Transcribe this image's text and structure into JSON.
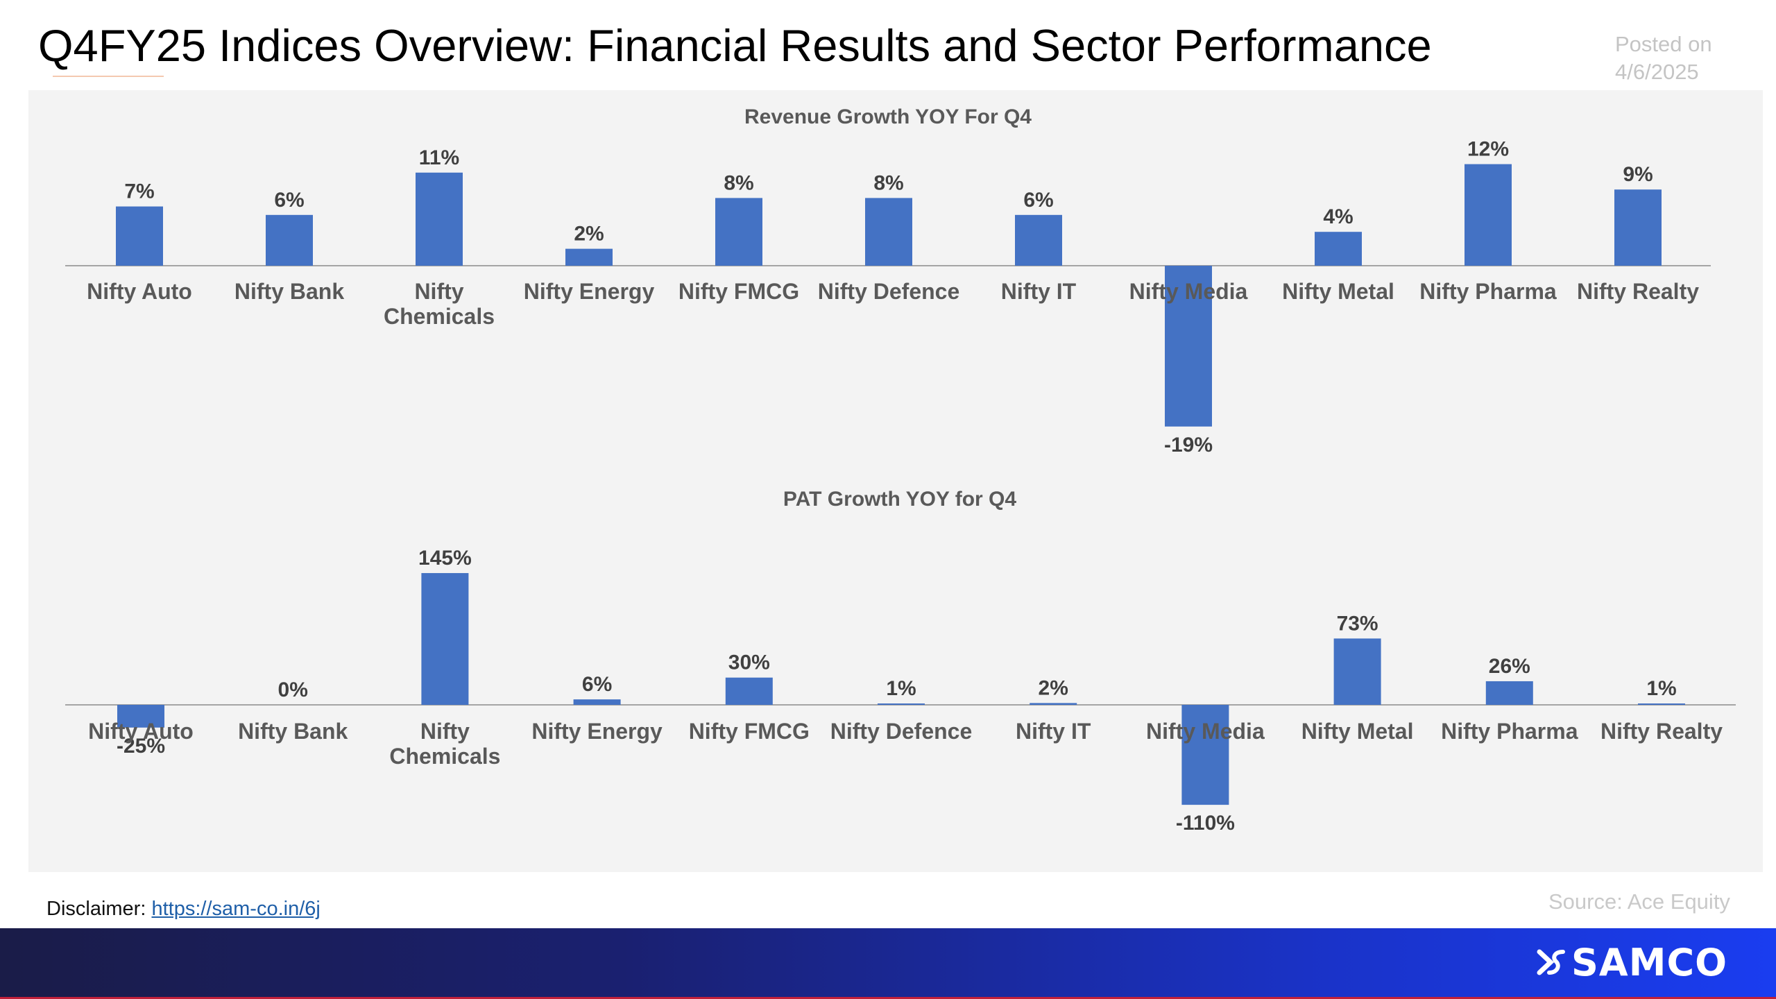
{
  "header": {
    "title": "Q4FY25 Indices Overview: Financial Results and Sector Performance",
    "posted_label": "Posted on",
    "posted_date": "4/6/2025"
  },
  "footer": {
    "source": "Source: Ace Equity",
    "disclaimer_label": "Disclaimer:",
    "disclaimer_link": "https://sam-co.in/6j",
    "brand": "SAMCO"
  },
  "colors": {
    "bar": "#4472c4",
    "panel_bg": "#f3f3f3",
    "label": "#595959",
    "value_label": "#404040"
  },
  "chart_data": [
    {
      "type": "bar",
      "title": "Revenue Growth YOY For Q4",
      "categories": [
        "Nifty Auto",
        "Nifty Bank",
        "Nifty Chemicals",
        "Nifty Energy",
        "Nifty FMCG",
        "Nifty Defence",
        "Nifty IT",
        "Nifty Media",
        "Nifty Metal",
        "Nifty Pharma",
        "Nifty Realty"
      ],
      "values": [
        7,
        6,
        11,
        2,
        8,
        8,
        6,
        -19,
        4,
        12,
        9
      ],
      "value_labels": [
        "7%",
        "6%",
        "11%",
        "2%",
        "8%",
        "8%",
        "6%",
        "-19%",
        "4%",
        "12%",
        "9%"
      ],
      "unit": "%",
      "grid": false
    },
    {
      "type": "bar",
      "title": "PAT Growth YOY for Q4",
      "categories": [
        "Nifty Auto",
        "Nifty Bank",
        "Nifty Chemicals",
        "Nifty Energy",
        "Nifty FMCG",
        "Nifty Defence",
        "Nifty IT",
        "Nifty Media",
        "Nifty Metal",
        "Nifty Pharma",
        "Nifty Realty"
      ],
      "values": [
        -25,
        0,
        145,
        6,
        30,
        1,
        2,
        -110,
        73,
        26,
        1
      ],
      "value_labels": [
        "-25%",
        "0%",
        "145%",
        "6%",
        "30%",
        "1%",
        "2%",
        "-110%",
        "73%",
        "26%",
        "1%"
      ],
      "unit": "%",
      "grid": false
    }
  ]
}
